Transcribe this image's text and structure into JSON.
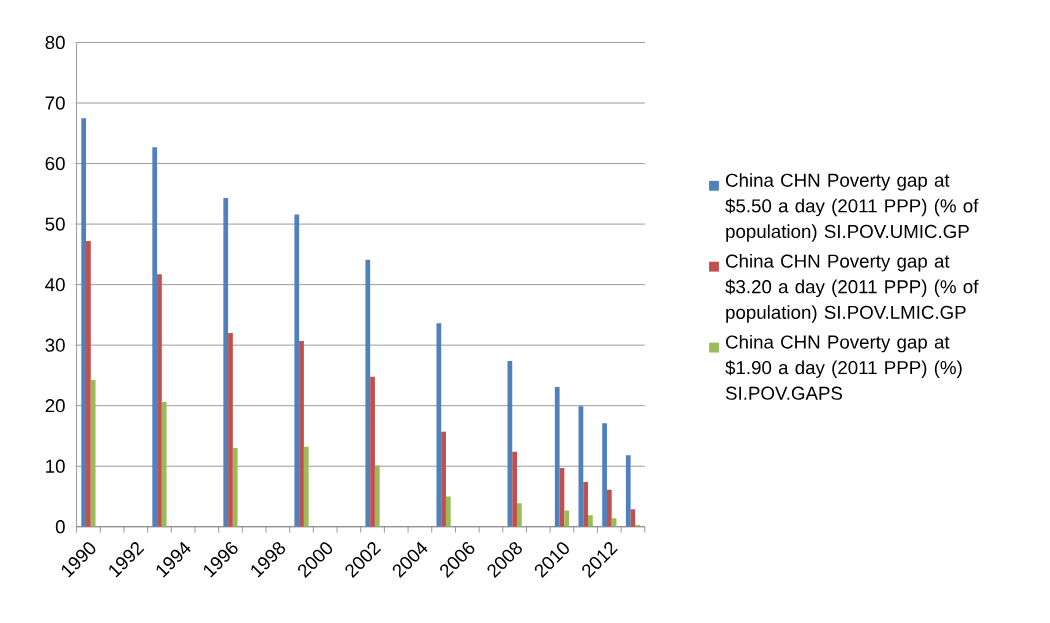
{
  "chart_data": {
    "type": "bar",
    "categories": [
      "1990",
      null,
      "1992",
      null,
      "1994",
      null,
      "1996",
      null,
      "1998",
      null,
      "2000",
      null,
      "2002",
      null,
      "2004",
      null,
      "2006",
      null,
      "2008",
      null,
      "2010",
      null,
      "2012",
      null
    ],
    "series": [
      {
        "name": "China CHN Poverty gap at $5.50 a day (2011 PPP) (% of population) SI.POV.UMIC.GP",
        "color": "#4f81bd",
        "values": [
          67.5,
          null,
          null,
          62.7,
          null,
          null,
          54.3,
          null,
          null,
          51.6,
          null,
          null,
          44.1,
          null,
          null,
          33.6,
          null,
          null,
          27.4,
          null,
          23.1,
          19.9,
          17.1,
          11.8
        ]
      },
      {
        "name": "China CHN Poverty gap at $3.20 a day (2011 PPP) (% of population) SI.POV.LMIC.GP",
        "color": "#c0504d",
        "values": [
          47.2,
          null,
          null,
          41.7,
          null,
          null,
          32.0,
          null,
          null,
          30.7,
          null,
          null,
          24.8,
          null,
          null,
          15.7,
          null,
          null,
          12.4,
          null,
          9.7,
          7.4,
          6.1,
          2.9
        ]
      },
      {
        "name": "China CHN Poverty gap at $1.90 a day (2011 PPP) (%) SI.POV.GAPS",
        "color": "#9bbb59",
        "values": [
          24.3,
          null,
          null,
          20.6,
          null,
          null,
          13.0,
          null,
          null,
          13.2,
          null,
          null,
          10.1,
          null,
          null,
          5.0,
          null,
          null,
          3.9,
          null,
          2.7,
          1.9,
          1.4,
          0.3
        ]
      }
    ],
    "ylim": [
      0,
      80
    ],
    "yticks": [
      0,
      10,
      20,
      30,
      40,
      50,
      60,
      70,
      80
    ],
    "grid": "y",
    "legend": "right"
  }
}
